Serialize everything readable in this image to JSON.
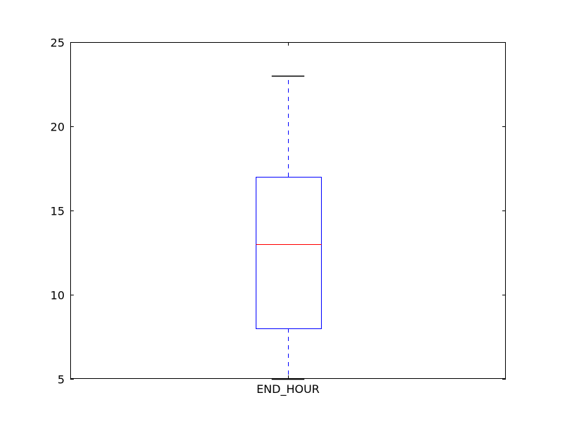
{
  "chart_data": {
    "type": "box",
    "title": "",
    "xlabel": "",
    "ylabel": "",
    "categories": [
      "END_HOUR"
    ],
    "series": [
      {
        "whisker_low": 5,
        "q1": 8,
        "median": 13,
        "q3": 17,
        "whisker_high": 23
      }
    ],
    "ylim": [
      5,
      25
    ],
    "yticks": [
      5,
      10,
      15,
      20,
      25
    ],
    "grid": false,
    "legend": "none",
    "colors": {
      "box": "#0000ff",
      "whisker": "#0000ff",
      "median": "#ff0000",
      "cap": "#000000",
      "axes": "#000000"
    }
  }
}
